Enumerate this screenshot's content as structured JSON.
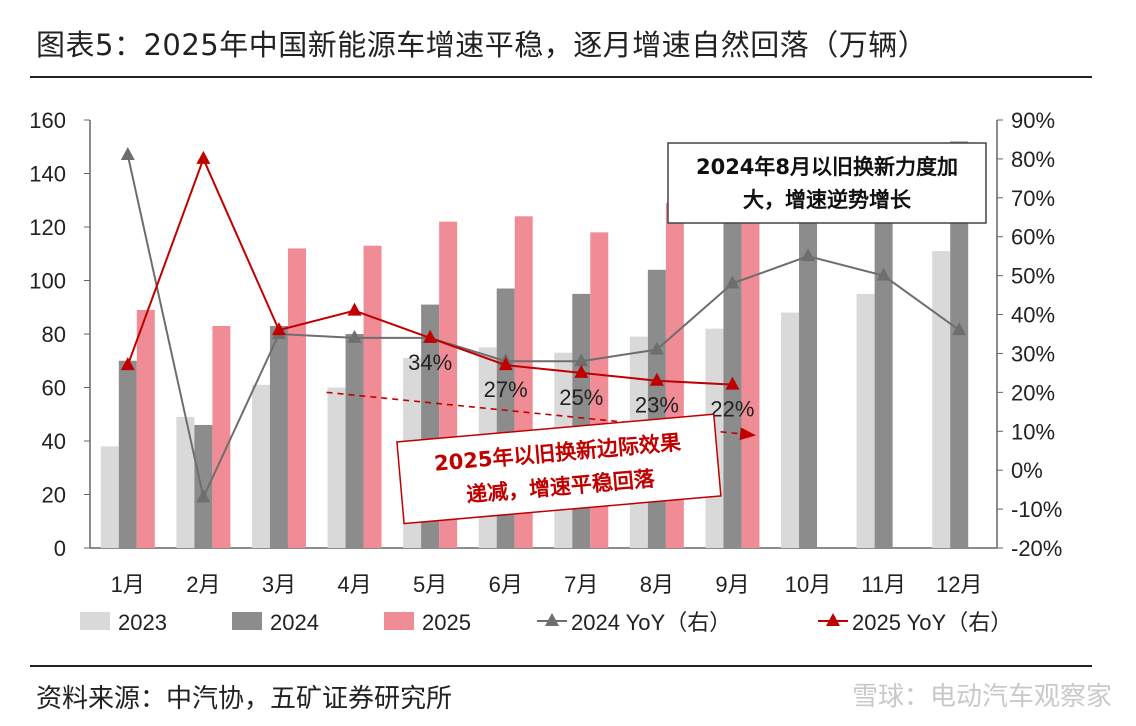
{
  "title": "图表5：2025年中国新能源车增速平稳，逐月增速自然回落（万辆）",
  "source": "资料来源：中汽协，五矿证券研究所",
  "watermark": "雪球：电动汽车观察家",
  "colors": {
    "s2023": "#d9d9d9",
    "s2024": "#8c8c8c",
    "s2025": "#f08c96",
    "yoy2024": "#6e6e6e",
    "yoy2025": "#c00000"
  },
  "chart_data": {
    "type": "bar",
    "categories": [
      "1月",
      "2月",
      "3月",
      "4月",
      "5月",
      "6月",
      "7月",
      "8月",
      "9月",
      "10月",
      "11月",
      "12月"
    ],
    "series": [
      {
        "name": "2023",
        "values": [
          38,
          49,
          61,
          60,
          71,
          75,
          73,
          79,
          82,
          88,
          95,
          111
        ]
      },
      {
        "name": "2024",
        "values": [
          70,
          46,
          83,
          80,
          91,
          97,
          95,
          104,
          129,
          136,
          127,
          152
        ]
      },
      {
        "name": "2025",
        "values": [
          89,
          83,
          112,
          113,
          122,
          124,
          118,
          129,
          149,
          null,
          null,
          null
        ]
      }
    ],
    "line_series": [
      {
        "name": "2024 YoY（右）",
        "values": [
          81,
          -7,
          35,
          34,
          34,
          28,
          28,
          31,
          48,
          55,
          50,
          36
        ]
      },
      {
        "name": "2025 YoY（右）",
        "values": [
          27,
          80,
          36,
          41,
          34,
          27,
          25,
          23,
          22,
          null,
          null,
          null
        ]
      }
    ],
    "ylim": [
      0,
      160
    ],
    "yticks": [
      "0",
      "20",
      "40",
      "60",
      "80",
      "100",
      "120",
      "140",
      "160"
    ],
    "y2lim": [
      -20,
      90
    ],
    "y2ticks": [
      "-20%",
      "-10%",
      "0%",
      "10%",
      "20%",
      "30%",
      "40%",
      "50%",
      "60%",
      "70%",
      "80%",
      "90%"
    ],
    "data_labels": [
      {
        "month": "5月",
        "text": "34%"
      },
      {
        "month": "6月",
        "text": "27%"
      },
      {
        "month": "7月",
        "text": "25%"
      },
      {
        "month": "8月",
        "text": "23%"
      },
      {
        "month": "9月",
        "text": "22%"
      }
    ],
    "annotations": [
      {
        "lines": [
          "2024年8月以旧换新力度加",
          "大，增速逆势增长"
        ]
      },
      {
        "lines": [
          "2025年以旧换新边际效果",
          "递减，增速平稳回落"
        ]
      }
    ],
    "trend_arrow": {
      "from": 20,
      "to": 9
    }
  }
}
